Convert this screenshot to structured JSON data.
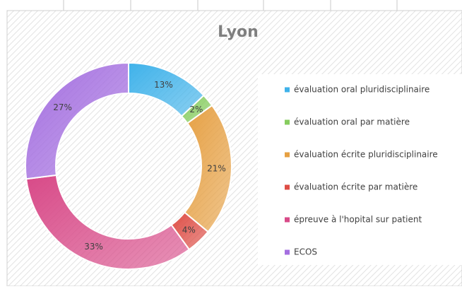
{
  "chart_data": {
    "type": "donut",
    "title": "Lyon",
    "categories": [
      "évaluation oral pluridisciplinaire",
      "évaluation oral par matière",
      "évaluation écrite pluridisciplinaire",
      "évaluation écrite par matière",
      "épreuve à l'hopital sur patient",
      "ECOS"
    ],
    "values": [
      13,
      2,
      21,
      4,
      33,
      27
    ],
    "value_labels": [
      "13%",
      "2%",
      "21%",
      "4%",
      "33%",
      "27%"
    ],
    "colors": [
      "#3fb2ea",
      "#86cc5e",
      "#e6a043",
      "#de4d45",
      "#d84a88",
      "#a46fe0"
    ],
    "legend": "right"
  }
}
